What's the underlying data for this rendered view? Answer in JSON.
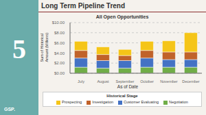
{
  "chart_data": {
    "type": "bar",
    "stacked": true,
    "title": "Long Term Pipeline Trend",
    "subtitle": "All Open Opportunities",
    "xlabel": "As of Date",
    "ylabel": "Sum of Historical\nAmount (Millions)",
    "annotations": [
      "5",
      "GSP."
    ],
    "legend_title": "Historical Stage",
    "categories": [
      "July\n2016",
      "August\n2016",
      "September\n20.",
      "October\n2016",
      "November\n20.",
      "December\n20."
    ],
    "series": [
      {
        "name": "Negotiation",
        "color": "#70ad47",
        "values": [
          1.2,
          1.0,
          1.0,
          1.2,
          1.2,
          1.2
        ]
      },
      {
        "name": "Customer Evaluating",
        "color": "#4472c4",
        "values": [
          1.8,
          1.5,
          1.5,
          1.8,
          1.5,
          1.5
        ]
      },
      {
        "name": "Investigation",
        "color": "#c0622a",
        "values": [
          1.5,
          1.2,
          1.0,
          1.5,
          1.5,
          1.5
        ]
      },
      {
        "name": "Prospecting",
        "color": "#f5c518",
        "values": [
          1.8,
          1.5,
          1.2,
          1.8,
          2.2,
          3.8
        ]
      }
    ],
    "ylim": [
      0,
      10
    ],
    "yticks": [
      {
        "value": 0,
        "label": "$0.00"
      },
      {
        "value": 2,
        "label": "$2.00"
      },
      {
        "value": 4,
        "label": "$4.00"
      },
      {
        "value": 6,
        "label": "$6.00"
      },
      {
        "value": 8,
        "label": "$8.00"
      },
      {
        "value": 10,
        "label": "$10.00"
      }
    ],
    "grid": true,
    "legend": "bottom"
  }
}
